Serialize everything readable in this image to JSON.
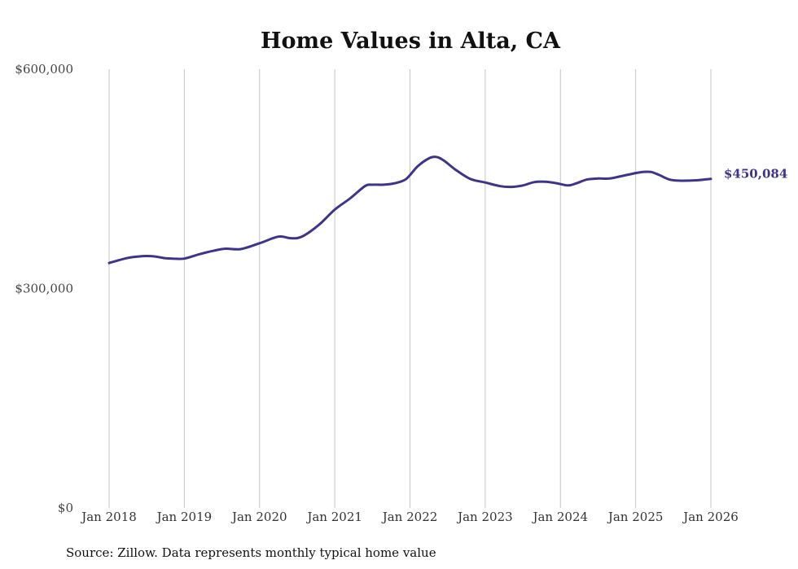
{
  "chart_data": {
    "type": "line",
    "title": "Home Values in Alta, CA",
    "xlabel": "",
    "ylabel": "",
    "ylim": [
      0,
      600000
    ],
    "xlim": [
      2018,
      2026
    ],
    "y_ticks": [
      {
        "value": 600000,
        "label": "$600,000"
      },
      {
        "value": 300000,
        "label": "$300,000"
      },
      {
        "value": 0,
        "label": "$0"
      }
    ],
    "x_ticks": [
      {
        "value": 2018,
        "label": "Jan 2018"
      },
      {
        "value": 2019,
        "label": "Jan 2019"
      },
      {
        "value": 2020,
        "label": "Jan 2020"
      },
      {
        "value": 2021,
        "label": "Jan 2021"
      },
      {
        "value": 2022,
        "label": "Jan 2022"
      },
      {
        "value": 2023,
        "label": "Jan 2023"
      },
      {
        "value": 2024,
        "label": "Jan 2024"
      },
      {
        "value": 2025,
        "label": "Jan 2025"
      },
      {
        "value": 2026,
        "label": "Jan 2026"
      }
    ],
    "grid": "vertical",
    "series": [
      {
        "name": "Typical home value",
        "color": "#3d348b",
        "x": [
          2018.0,
          2018.1,
          2018.25,
          2018.4,
          2018.5,
          2018.6,
          2018.75,
          2018.85,
          2019.0,
          2019.2,
          2019.4,
          2019.55,
          2019.75,
          2020.0,
          2020.25,
          2020.4,
          2020.5,
          2020.6,
          2020.8,
          2021.0,
          2021.2,
          2021.4,
          2021.5,
          2021.65,
          2021.8,
          2021.95,
          2022.1,
          2022.25,
          2022.35,
          2022.45,
          2022.6,
          2022.8,
          2023.0,
          2023.2,
          2023.35,
          2023.5,
          2023.65,
          2023.8,
          2023.95,
          2024.1,
          2024.2,
          2024.35,
          2024.5,
          2024.65,
          2024.8,
          2025.0,
          2025.1,
          2025.2,
          2025.3,
          2025.45,
          2025.6,
          2025.8,
          2026.0
        ],
        "values": [
          335000,
          338000,
          342000,
          344000,
          344500,
          344000,
          341500,
          341000,
          341000,
          347000,
          352000,
          354500,
          354000,
          362000,
          371000,
          369000,
          369000,
          373000,
          388000,
          408000,
          423000,
          440000,
          442000,
          442000,
          444000,
          450000,
          467000,
          478000,
          480000,
          475000,
          463000,
          450000,
          445000,
          440000,
          439000,
          441000,
          445500,
          446000,
          444000,
          441000,
          443500,
          449000,
          450500,
          450500,
          453500,
          458000,
          459500,
          459500,
          456000,
          449000,
          447500,
          448000,
          450084
        ]
      }
    ],
    "end_label": "$450,084",
    "source": "Source: Zillow. Data represents monthly typical home value"
  }
}
